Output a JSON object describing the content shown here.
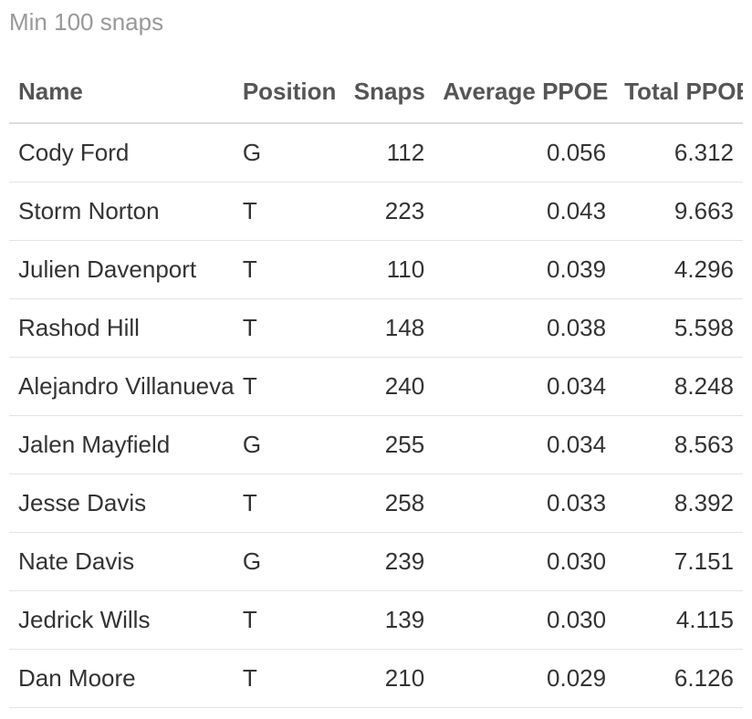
{
  "subtitle": "Min 100 snaps",
  "colors": {
    "subtitle": "#999999",
    "header_text": "#555555",
    "cell_text": "#333333",
    "divider": "#dddddd"
  },
  "chart_data": {
    "type": "table",
    "title": "",
    "subtitle": "Min 100 snaps",
    "columns": [
      "Name",
      "Position",
      "Snaps",
      "Average PPOE",
      "Total PPOE"
    ],
    "rows": [
      {
        "name": "Cody Ford",
        "position": "G",
        "snaps": "112",
        "avg_ppoe": "0.056",
        "total_ppoe": "6.312"
      },
      {
        "name": "Storm Norton",
        "position": "T",
        "snaps": "223",
        "avg_ppoe": "0.043",
        "total_ppoe": "9.663"
      },
      {
        "name": "Julien Davenport",
        "position": "T",
        "snaps": "110",
        "avg_ppoe": "0.039",
        "total_ppoe": "4.296"
      },
      {
        "name": "Rashod Hill",
        "position": "T",
        "snaps": "148",
        "avg_ppoe": "0.038",
        "total_ppoe": "5.598"
      },
      {
        "name": "Alejandro Villanueva",
        "position": "T",
        "snaps": "240",
        "avg_ppoe": "0.034",
        "total_ppoe": "8.248"
      },
      {
        "name": "Jalen Mayfield",
        "position": "G",
        "snaps": "255",
        "avg_ppoe": "0.034",
        "total_ppoe": "8.563"
      },
      {
        "name": "Jesse Davis",
        "position": "T",
        "snaps": "258",
        "avg_ppoe": "0.033",
        "total_ppoe": "8.392"
      },
      {
        "name": "Nate Davis",
        "position": "G",
        "snaps": "239",
        "avg_ppoe": "0.030",
        "total_ppoe": "7.151"
      },
      {
        "name": "Jedrick Wills",
        "position": "T",
        "snaps": "139",
        "avg_ppoe": "0.030",
        "total_ppoe": "4.115"
      },
      {
        "name": "Dan Moore",
        "position": "T",
        "snaps": "210",
        "avg_ppoe": "0.029",
        "total_ppoe": "6.126"
      }
    ]
  }
}
